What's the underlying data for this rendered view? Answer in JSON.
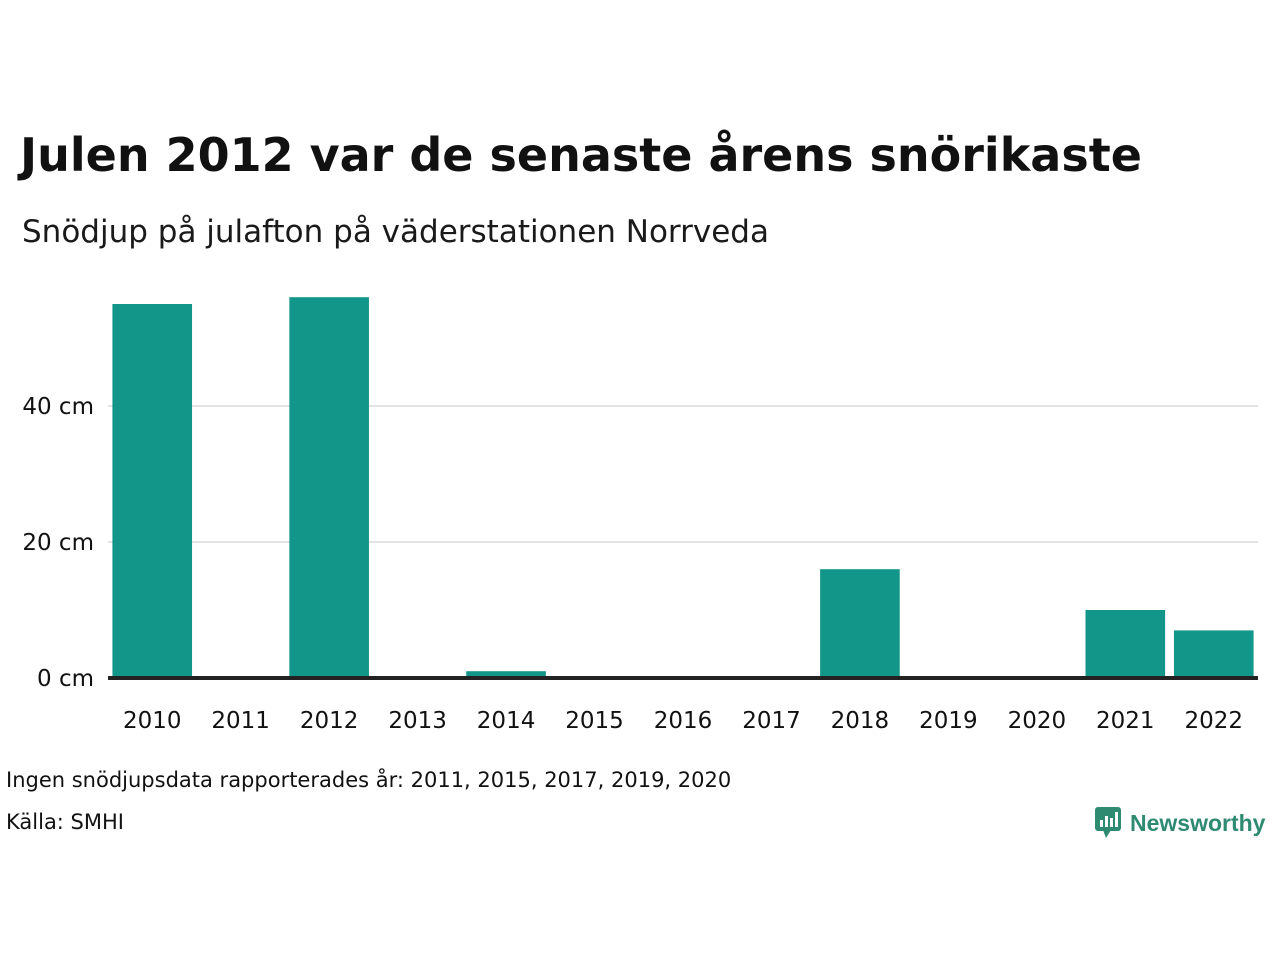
{
  "colors": {
    "bar": "#13968a",
    "grid": "#e3e3e3",
    "baseline": "#222222",
    "brand": "#2e8b72"
  },
  "chart_data": {
    "type": "bar",
    "title": "Julen 2012 var de senaste årens snörikaste",
    "subtitle": "Snödjup på julafton på väderstationen Norrveda",
    "categories": [
      "2010",
      "2011",
      "2012",
      "2013",
      "2014",
      "2015",
      "2016",
      "2017",
      "2018",
      "2019",
      "2020",
      "2021",
      "2022"
    ],
    "values": [
      55,
      0,
      56,
      0,
      1,
      0,
      0,
      0,
      16,
      0,
      0,
      10,
      7
    ],
    "yticks": [
      0,
      20,
      40
    ],
    "ytick_labels": [
      "0 cm",
      "20 cm",
      "40 cm"
    ],
    "ylim": [
      0,
      57
    ],
    "grid": true,
    "legend": "none"
  },
  "footer": {
    "note": "Ingen snödjupsdata rapporterades år: 2011, 2015, 2017, 2019, 2020",
    "source": "Källa: SMHI",
    "brand_icon": "bar-chart-speech-bubble-icon",
    "brand_name": "Newsworthy"
  }
}
